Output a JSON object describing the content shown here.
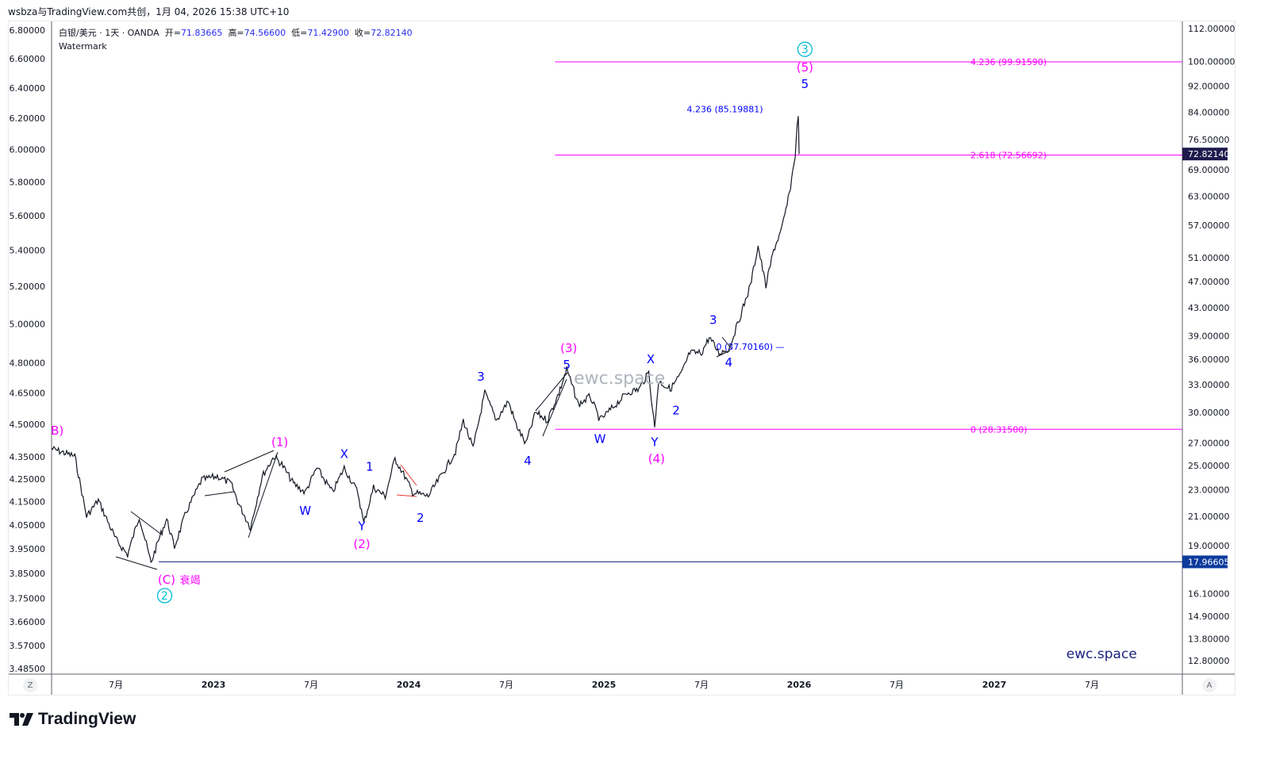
{
  "caption": "wsbza与TradingView.com共创，1月 04, 2026 15:38 UTC+10",
  "legend": {
    "symbol": "白银/美元 · 1天 · OANDA",
    "open_label": "开=",
    "open": "71.83665",
    "high_label": "高=",
    "high": "74.56600",
    "low_label": "低=",
    "low": "71.42900",
    "close_label": "收=",
    "close": "72.82140",
    "watermark_label": "Watermark"
  },
  "axis_buttons": {
    "left": "Z",
    "right": "A"
  },
  "logo_text": "TradingView",
  "colors": {
    "price": "#131722",
    "magenta": "#ff00ff",
    "blue": "#0000ff",
    "cyan": "#00bcd4",
    "last_price_badge": "#1e1a4d",
    "level_badge": "#0d3a9c"
  },
  "chart_data": {
    "type": "line",
    "title": "白银/美元 · 1天 · OANDA",
    "scale": "log",
    "ylim": [
      12.8,
      112
    ],
    "xlim": [
      2022.17,
      2027.9
    ],
    "grid": false,
    "right_ticks": [
      "112.00000",
      "100.00000",
      "92.00000",
      "84.00000",
      "76.50000",
      "69.00000",
      "63.00000",
      "57.00000",
      "51.00000",
      "47.00000",
      "43.00000",
      "39.00000",
      "36.00000",
      "33.00000",
      "30.00000",
      "27.00000",
      "25.00000",
      "23.00000",
      "21.00000",
      "19.00000",
      "16.10000",
      "14.90000",
      "13.80000",
      "12.80000"
    ],
    "left_ticks": [
      "6.80000",
      "6.60000",
      "6.40000",
      "6.20000",
      "6.00000",
      "5.80000",
      "5.60000",
      "5.40000",
      "5.20000",
      "5.00000",
      "4.80000",
      "4.65000",
      "4.50000",
      "4.35000",
      "4.25000",
      "4.15000",
      "4.05000",
      "3.95000",
      "3.85000",
      "3.75000",
      "3.66000",
      "3.57000",
      "3.48500"
    ],
    "left_ylim": [
      3.485,
      6.8
    ],
    "x_ticks": [
      {
        "t": 2022.5,
        "label": "7月",
        "bold": false
      },
      {
        "t": 2023.0,
        "label": "2023",
        "bold": true
      },
      {
        "t": 2023.5,
        "label": "7月",
        "bold": false
      },
      {
        "t": 2024.0,
        "label": "2024",
        "bold": true
      },
      {
        "t": 2024.5,
        "label": "7月",
        "bold": false
      },
      {
        "t": 2025.0,
        "label": "2025",
        "bold": true
      },
      {
        "t": 2025.5,
        "label": "7月",
        "bold": false
      },
      {
        "t": 2026.0,
        "label": "2026",
        "bold": true
      },
      {
        "t": 2026.5,
        "label": "7月",
        "bold": false
      },
      {
        "t": 2027.0,
        "label": "2027",
        "bold": true
      },
      {
        "t": 2027.5,
        "label": "7月",
        "bold": false
      }
    ],
    "series": [
      {
        "name": "XAG/USD",
        "points": [
          [
            2022.17,
            26.5
          ],
          [
            2022.29,
            25.8
          ],
          [
            2022.35,
            21.0
          ],
          [
            2022.41,
            22.2
          ],
          [
            2022.5,
            19.4
          ],
          [
            2022.56,
            18.4
          ],
          [
            2022.62,
            21.0
          ],
          [
            2022.68,
            17.9
          ],
          [
            2022.72,
            19.4
          ],
          [
            2022.76,
            20.8
          ],
          [
            2022.8,
            18.9
          ],
          [
            2022.86,
            21.3
          ],
          [
            2022.94,
            23.8
          ],
          [
            2023.02,
            24.1
          ],
          [
            2023.09,
            23.5
          ],
          [
            2023.13,
            21.9
          ],
          [
            2023.19,
            20.2
          ],
          [
            2023.25,
            24.1
          ],
          [
            2023.31,
            25.8
          ],
          [
            2023.35,
            25.1
          ],
          [
            2023.41,
            23.5
          ],
          [
            2023.47,
            22.8
          ],
          [
            2023.53,
            24.8
          ],
          [
            2023.61,
            22.8
          ],
          [
            2023.67,
            24.8
          ],
          [
            2023.74,
            22.8
          ],
          [
            2023.77,
            20.5
          ],
          [
            2023.82,
            23.2
          ],
          [
            2023.88,
            22.5
          ],
          [
            2023.93,
            25.6
          ],
          [
            2023.98,
            24.1
          ],
          [
            2024.02,
            22.8
          ],
          [
            2024.1,
            22.5
          ],
          [
            2024.18,
            24.5
          ],
          [
            2024.24,
            26.2
          ],
          [
            2024.28,
            29.2
          ],
          [
            2024.33,
            26.5
          ],
          [
            2024.39,
            32.1
          ],
          [
            2024.45,
            29.2
          ],
          [
            2024.51,
            31.2
          ],
          [
            2024.55,
            28.8
          ],
          [
            2024.6,
            26.9
          ],
          [
            2024.65,
            30.0
          ],
          [
            2024.71,
            29.2
          ],
          [
            2024.77,
            32.1
          ],
          [
            2024.81,
            34.8
          ],
          [
            2024.87,
            30.8
          ],
          [
            2024.93,
            31.7
          ],
          [
            2024.98,
            29.2
          ],
          [
            2025.04,
            30.4
          ],
          [
            2025.12,
            32.1
          ],
          [
            2025.18,
            32.5
          ],
          [
            2025.23,
            34.4
          ],
          [
            2025.26,
            28.4
          ],
          [
            2025.28,
            33.4
          ],
          [
            2025.34,
            32.5
          ],
          [
            2025.4,
            34.4
          ],
          [
            2025.44,
            36.8
          ],
          [
            2025.5,
            36.8
          ],
          [
            2025.54,
            38.8
          ],
          [
            2025.59,
            36.8
          ],
          [
            2025.64,
            37.3
          ],
          [
            2025.69,
            41.0
          ],
          [
            2025.75,
            46.3
          ],
          [
            2025.79,
            53.1
          ],
          [
            2025.83,
            46.3
          ],
          [
            2025.87,
            52.4
          ],
          [
            2025.91,
            56.1
          ],
          [
            2025.95,
            63.4
          ],
          [
            2025.98,
            72.6
          ],
          [
            2025.996,
            83.9
          ],
          [
            2026.0,
            72.8
          ]
        ]
      }
    ],
    "last_price": {
      "value": 72.8214,
      "label": "72.82140"
    },
    "levels": [
      {
        "value": 99.9159,
        "from": 2024.75,
        "label": "4.236 (99.91590)",
        "color": "#ff00ff"
      },
      {
        "value": 72.56692,
        "from": 2024.75,
        "label": "2.618 (72.56692)",
        "color": "#ff00ff"
      },
      {
        "value": 28.315,
        "from": 2024.75,
        "label": "0 (28.31500)",
        "color": "#ff00ff"
      }
    ],
    "support": {
      "value": 17.96605,
      "from": 2022.72,
      "label": "17.96605",
      "color": "#1a237e"
    },
    "annotations": [
      {
        "t": 2022.2,
        "p": 28.2,
        "text": "B)",
        "color": "#ff00ff",
        "size": 15
      },
      {
        "t": 2023.34,
        "p": 27.1,
        "text": "(1)",
        "color": "#ff00ff",
        "size": 15
      },
      {
        "t": 2023.47,
        "p": 21.4,
        "text": "W",
        "color": "#0000ff",
        "size": 15
      },
      {
        "t": 2023.67,
        "p": 26.0,
        "text": "X",
        "color": "#0000ff",
        "size": 15
      },
      {
        "t": 2023.76,
        "p": 20.3,
        "text": "Y",
        "color": "#0000ff",
        "size": 15
      },
      {
        "t": 2023.76,
        "p": 19.1,
        "text": "(2)",
        "color": "#ff00ff",
        "size": 15
      },
      {
        "t": 2023.8,
        "p": 24.9,
        "text": "1",
        "color": "#0000ff",
        "size": 15
      },
      {
        "t": 2024.06,
        "p": 20.9,
        "text": "2",
        "color": "#0000ff",
        "size": 15
      },
      {
        "t": 2024.37,
        "p": 33.9,
        "text": "3",
        "color": "#0000ff",
        "size": 15
      },
      {
        "t": 2024.61,
        "p": 25.4,
        "text": "4",
        "color": "#0000ff",
        "size": 15
      },
      {
        "t": 2024.82,
        "p": 37.4,
        "text": "(3)",
        "color": "#ff00ff",
        "size": 15
      },
      {
        "t": 2024.81,
        "p": 35.8,
        "text": "5",
        "color": "#0000ff",
        "size": 15
      },
      {
        "t": 2024.98,
        "p": 27.4,
        "text": "W",
        "color": "#0000ff",
        "size": 15
      },
      {
        "t": 2025.24,
        "p": 36.0,
        "text": "X",
        "color": "#0000ff",
        "size": 15
      },
      {
        "t": 2025.26,
        "p": 27.1,
        "text": "Y",
        "color": "#0000ff",
        "size": 15
      },
      {
        "t": 2025.27,
        "p": 26.1,
        "text": "(4)",
        "color": "#ff00ff",
        "size": 15
      },
      {
        "t": 2025.37,
        "p": 30.2,
        "text": "2",
        "color": "#0000ff",
        "size": 15
      },
      {
        "t": 2025.56,
        "p": 41.2,
        "text": "3",
        "color": "#0000ff",
        "size": 15
      },
      {
        "t": 2025.64,
        "p": 35.6,
        "text": "4",
        "color": "#0000ff",
        "size": 15
      },
      {
        "t": 2026.03,
        "p": 98.0,
        "text": "(5)",
        "color": "#ff00ff",
        "size": 15
      },
      {
        "t": 2026.03,
        "p": 94.0,
        "text": "5",
        "color": "#0000ff",
        "size": 15
      },
      {
        "t": 2025.62,
        "p": 85.2,
        "text": "4.236 (85.19881)",
        "color": "#0000ff",
        "size": 11
      },
      {
        "t": 2025.75,
        "p": 37.7,
        "text": "0 (37.70160) —",
        "color": "#0000ff",
        "size": 11
      },
      {
        "t": 2022.76,
        "p": 16.9,
        "text": "(C)",
        "color": "#ff00ff",
        "size": 15
      },
      {
        "t": 2022.88,
        "p": 16.9,
        "text": "衰竭",
        "color": "#ff00ff",
        "size": 13
      }
    ],
    "circled": [
      {
        "t": 2022.75,
        "p": 16.0,
        "text": "2",
        "color": "#00bcd4"
      },
      {
        "t": 2026.03,
        "p": 104.3,
        "text": "3",
        "color": "#00bcd4"
      }
    ],
    "watermarks": [
      {
        "t": 2025.08,
        "p": 34.8,
        "text": "ewc.space",
        "color": "#b0b4bd",
        "size": 22
      },
      {
        "t": 2027.55,
        "p": 12.9,
        "text": "ewc.space",
        "color": "#1a237e",
        "size": 17
      }
    ]
  }
}
